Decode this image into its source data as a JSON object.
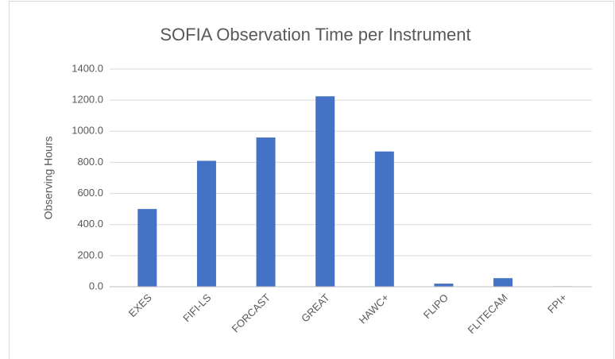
{
  "chart_data": {
    "type": "bar",
    "title": "SOFIA Observation Time per Instrument",
    "y_label": "Observing Hours",
    "categories": [
      "EXES",
      "FIFI-LS",
      "FORCAST",
      "GREAT",
      "HAWC+",
      "FLIPO",
      "FLITECAM",
      "FPI+"
    ],
    "values": [
      500,
      810,
      960,
      1225,
      870,
      20,
      55,
      3
    ],
    "color": "#4472c4",
    "ylim": [
      0,
      1400
    ],
    "yticks": [
      {
        "value": 0,
        "label": "0.0"
      },
      {
        "value": 200,
        "label": "200.0"
      },
      {
        "value": 400,
        "label": "400.0"
      },
      {
        "value": 600,
        "label": "600.0"
      },
      {
        "value": 800,
        "label": "800.0"
      },
      {
        "value": 1000,
        "label": "1000.0"
      },
      {
        "value": 1200,
        "label": "1200.0"
      },
      {
        "value": 1400,
        "label": "1400.0"
      }
    ],
    "grid": true
  }
}
